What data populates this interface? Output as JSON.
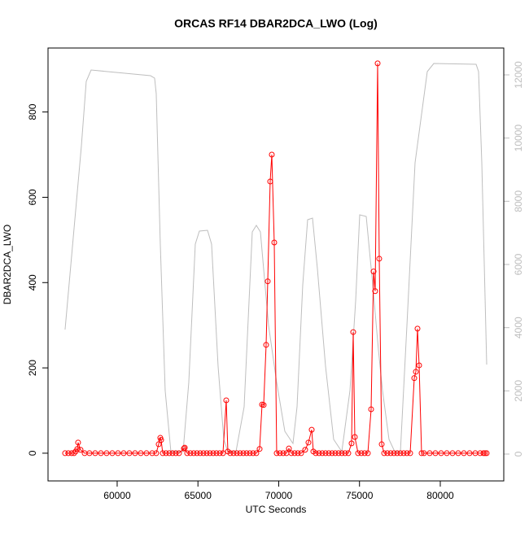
{
  "chart_data": {
    "type": "line",
    "title": "ORCAS RF14 DBAR2DCA_LWO (Log)",
    "xlabel": "UTC Seconds",
    "ylabel": "DBAR2DCA_LWO",
    "xlim": [
      55720,
      83930
    ],
    "xticks": [
      60000,
      65000,
      70000,
      75000,
      80000
    ],
    "ylim": [
      -65,
      950
    ],
    "yticks": [
      0,
      200,
      400,
      600,
      800
    ],
    "y2lim": [
      -850,
      12850
    ],
    "y2ticks": [
      0,
      2000,
      4000,
      6000,
      8000,
      10000,
      12000
    ],
    "series": [
      {
        "color": "#bebebe",
        "axis": "y2",
        "markers": false,
        "x": [
          56776,
          57783,
          58086,
          58388,
          62066,
          62317,
          62418,
          62670,
          62972,
          63325,
          64081,
          64433,
          64836,
          65088,
          65592,
          65844,
          66247,
          66600,
          66852,
          67355,
          67859,
          68363,
          68615,
          68867,
          69371,
          69874,
          70378,
          70882,
          71134,
          71487,
          71789,
          72091,
          72393,
          72897,
          73401,
          73905,
          74409,
          74761,
          75013,
          75416,
          75819,
          76172,
          76424,
          76827,
          77180,
          77532,
          77935,
          78439,
          79195,
          79598,
          82218,
          82369,
          82570,
          82873
        ],
        "values": [
          3940,
          9735,
          11794,
          12154,
          11974,
          11897,
          11407,
          6644,
          2009,
          77,
          77,
          2266,
          6644,
          7056,
          7081,
          6644,
          2781,
          464,
          77,
          77,
          1494,
          7030,
          7236,
          7030,
          4069,
          2266,
          721,
          335,
          1494,
          5356,
          7416,
          7468,
          5871,
          2781,
          464,
          77,
          2009,
          4841,
          7571,
          7519,
          5356,
          3296,
          2009,
          464,
          77,
          77,
          4069,
          9219,
          12103,
          12360,
          12334,
          12103,
          9219,
          2833
        ]
      },
      {
        "color": "#ff0000",
        "markers": true,
        "x": [
          56776,
          56977,
          57179,
          57330,
          57431,
          57531,
          57582,
          57733,
          57985,
          58287,
          58640,
          58992,
          59345,
          59698,
          60050,
          60403,
          60756,
          61108,
          61461,
          61814,
          62166,
          62418,
          62569,
          62670,
          62721,
          62821,
          63023,
          63224,
          63426,
          63627,
          63829,
          64131,
          64182,
          64333,
          64534,
          64736,
          64937,
          65139,
          65340,
          65542,
          65743,
          65945,
          66146,
          66348,
          66549,
          66751,
          66852,
          67003,
          67204,
          67406,
          67607,
          67809,
          68010,
          68212,
          68413,
          68615,
          68817,
          68968,
          69068,
          69220,
          69320,
          69471,
          69572,
          69723,
          69874,
          70076,
          70278,
          70479,
          70630,
          70781,
          70983,
          71184,
          71386,
          71638,
          71839,
          72041,
          72142,
          72293,
          72494,
          72696,
          72897,
          73099,
          73300,
          73502,
          73703,
          73905,
          74106,
          74308,
          74509,
          74610,
          74711,
          74912,
          75114,
          75316,
          75517,
          75719,
          75870,
          75970,
          76122,
          76222,
          76374,
          76525,
          76726,
          76928,
          77129,
          77331,
          77532,
          77734,
          77935,
          78137,
          78389,
          78489,
          78590,
          78691,
          78842,
          78993,
          79346,
          79699,
          80051,
          80404,
          80757,
          81109,
          81462,
          81815,
          82167,
          82469,
          82671,
          82772,
          82873
        ],
        "values": [
          0,
          0,
          0,
          0,
          4,
          10,
          25,
          8,
          0,
          0,
          0,
          0,
          0,
          0,
          0,
          0,
          0,
          0,
          0,
          0,
          0,
          0,
          21,
          36,
          31,
          0,
          0,
          0,
          0,
          0,
          0,
          11,
          13,
          0,
          0,
          0,
          0,
          0,
          0,
          0,
          0,
          0,
          0,
          0,
          0,
          124,
          4,
          0,
          0,
          0,
          0,
          0,
          0,
          0,
          0,
          0,
          10,
          114,
          113,
          254,
          403,
          637,
          700,
          494,
          0,
          0,
          0,
          0,
          11,
          0,
          0,
          0,
          0,
          8,
          25,
          55,
          4,
          0,
          0,
          0,
          0,
          0,
          0,
          0,
          0,
          0,
          0,
          0,
          23,
          284,
          38,
          0,
          0,
          0,
          0,
          103,
          426,
          380,
          914,
          456,
          21,
          0,
          0,
          0,
          0,
          0,
          0,
          0,
          0,
          0,
          176,
          191,
          292,
          206,
          0,
          0,
          0,
          0,
          0,
          0,
          0,
          0,
          0,
          0,
          0,
          0,
          0,
          0,
          0
        ]
      }
    ]
  }
}
